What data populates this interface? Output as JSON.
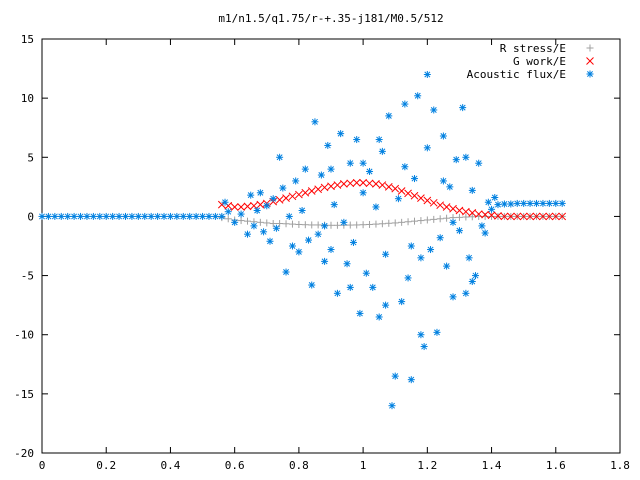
{
  "chart_data": {
    "type": "scatter",
    "title": "m1/n1.5/q1.75/r-+.35-j181/M0.5/512",
    "xlabel": "",
    "ylabel": "",
    "xlim": [
      0,
      1.8
    ],
    "ylim": [
      -20,
      15
    ],
    "x_ticks": [
      "0",
      "0.2",
      "0.4",
      "0.6",
      "0.8",
      "1",
      "1.2",
      "1.4",
      "1.6",
      "1.8"
    ],
    "y_ticks": [
      "-20",
      "-15",
      "-10",
      "-5",
      "0",
      "5",
      "10",
      "15"
    ],
    "grid": false,
    "legend_position": "top-right",
    "series": [
      {
        "name": "R stress/E",
        "marker": "plus",
        "color": "#a0a0a0",
        "points": [
          [
            0.56,
            -0.1
          ],
          [
            0.58,
            -0.2
          ],
          [
            0.6,
            -0.3
          ],
          [
            0.62,
            -0.35
          ],
          [
            0.64,
            -0.4
          ],
          [
            0.66,
            -0.45
          ],
          [
            0.68,
            -0.5
          ],
          [
            0.7,
            -0.55
          ],
          [
            0.72,
            -0.6
          ],
          [
            0.74,
            -0.6
          ],
          [
            0.76,
            -0.62
          ],
          [
            0.78,
            -0.65
          ],
          [
            0.8,
            -0.68
          ],
          [
            0.82,
            -0.7
          ],
          [
            0.84,
            -0.72
          ],
          [
            0.86,
            -0.72
          ],
          [
            0.88,
            -0.74
          ],
          [
            0.9,
            -0.75
          ],
          [
            0.92,
            -0.75
          ],
          [
            0.94,
            -0.74
          ],
          [
            0.96,
            -0.73
          ],
          [
            0.98,
            -0.72
          ],
          [
            1.0,
            -0.7
          ],
          [
            1.02,
            -0.68
          ],
          [
            1.04,
            -0.65
          ],
          [
            1.06,
            -0.62
          ],
          [
            1.08,
            -0.58
          ],
          [
            1.1,
            -0.55
          ],
          [
            1.12,
            -0.5
          ],
          [
            1.14,
            -0.45
          ],
          [
            1.16,
            -0.4
          ],
          [
            1.18,
            -0.35
          ],
          [
            1.2,
            -0.3
          ],
          [
            1.22,
            -0.25
          ],
          [
            1.24,
            -0.2
          ],
          [
            1.26,
            -0.15
          ],
          [
            1.28,
            -0.1
          ],
          [
            1.3,
            -0.08
          ],
          [
            1.32,
            -0.05
          ],
          [
            1.34,
            -0.03
          ],
          [
            1.36,
            0.0
          ],
          [
            1.38,
            0.0
          ],
          [
            1.4,
            0.0
          ],
          [
            1.42,
            0.0
          ],
          [
            1.44,
            0.0
          ],
          [
            1.46,
            0.0
          ],
          [
            1.48,
            0.0
          ],
          [
            1.5,
            0.0
          ],
          [
            1.52,
            0.0
          ],
          [
            1.54,
            0.0
          ],
          [
            1.56,
            0.0
          ],
          [
            1.58,
            0.0
          ],
          [
            1.6,
            0.0
          ],
          [
            1.62,
            0.0
          ]
        ]
      },
      {
        "name": "G work/E",
        "marker": "cross",
        "color": "#ff0000",
        "points": [
          [
            0.56,
            1.0
          ],
          [
            0.58,
            0.9
          ],
          [
            0.6,
            0.8
          ],
          [
            0.62,
            0.8
          ],
          [
            0.64,
            0.85
          ],
          [
            0.66,
            0.9
          ],
          [
            0.68,
            1.0
          ],
          [
            0.7,
            1.1
          ],
          [
            0.72,
            1.25
          ],
          [
            0.74,
            1.4
          ],
          [
            0.76,
            1.55
          ],
          [
            0.78,
            1.7
          ],
          [
            0.8,
            1.85
          ],
          [
            0.82,
            2.0
          ],
          [
            0.84,
            2.15
          ],
          [
            0.86,
            2.3
          ],
          [
            0.88,
            2.45
          ],
          [
            0.9,
            2.55
          ],
          [
            0.92,
            2.65
          ],
          [
            0.94,
            2.75
          ],
          [
            0.96,
            2.8
          ],
          [
            0.98,
            2.85
          ],
          [
            1.0,
            2.85
          ],
          [
            1.02,
            2.8
          ],
          [
            1.04,
            2.75
          ],
          [
            1.06,
            2.65
          ],
          [
            1.08,
            2.5
          ],
          [
            1.1,
            2.35
          ],
          [
            1.12,
            2.15
          ],
          [
            1.14,
            1.95
          ],
          [
            1.16,
            1.75
          ],
          [
            1.18,
            1.55
          ],
          [
            1.2,
            1.35
          ],
          [
            1.22,
            1.15
          ],
          [
            1.24,
            0.95
          ],
          [
            1.26,
            0.8
          ],
          [
            1.28,
            0.65
          ],
          [
            1.3,
            0.5
          ],
          [
            1.32,
            0.4
          ],
          [
            1.34,
            0.3
          ],
          [
            1.36,
            0.2
          ],
          [
            1.38,
            0.15
          ],
          [
            1.4,
            0.1
          ],
          [
            1.42,
            0.05
          ],
          [
            1.44,
            0.0
          ],
          [
            1.46,
            0.0
          ],
          [
            1.48,
            0.0
          ],
          [
            1.5,
            0.0
          ],
          [
            1.52,
            0.0
          ],
          [
            1.54,
            0.0
          ],
          [
            1.56,
            0.0
          ],
          [
            1.58,
            0.0
          ],
          [
            1.6,
            0.0
          ],
          [
            1.62,
            0.0
          ]
        ]
      },
      {
        "name": "Acoustic flux/E",
        "marker": "star",
        "color": "#0080e0",
        "baseline": [
          [
            0.0,
            0.0
          ],
          [
            0.02,
            0.0
          ],
          [
            0.04,
            0.0
          ],
          [
            0.06,
            0.0
          ],
          [
            0.08,
            0.0
          ],
          [
            0.1,
            0.0
          ],
          [
            0.12,
            0.0
          ],
          [
            0.14,
            0.0
          ],
          [
            0.16,
            0.0
          ],
          [
            0.18,
            0.0
          ],
          [
            0.2,
            0.0
          ],
          [
            0.22,
            0.0
          ],
          [
            0.24,
            0.0
          ],
          [
            0.26,
            0.0
          ],
          [
            0.28,
            0.0
          ],
          [
            0.3,
            0.0
          ],
          [
            0.32,
            0.0
          ],
          [
            0.34,
            0.0
          ],
          [
            0.36,
            0.0
          ],
          [
            0.38,
            0.0
          ],
          [
            0.4,
            0.0
          ],
          [
            0.42,
            0.0
          ],
          [
            0.44,
            0.0
          ],
          [
            0.46,
            0.0
          ],
          [
            0.48,
            0.0
          ],
          [
            0.5,
            0.0
          ],
          [
            0.52,
            0.0
          ],
          [
            0.54,
            0.0
          ],
          [
            0.56,
            0.0
          ],
          [
            1.42,
            1.0
          ],
          [
            1.44,
            1.05
          ],
          [
            1.46,
            1.05
          ],
          [
            1.48,
            1.1
          ],
          [
            1.5,
            1.1
          ],
          [
            1.52,
            1.1
          ],
          [
            1.54,
            1.1
          ],
          [
            1.56,
            1.1
          ],
          [
            1.58,
            1.1
          ],
          [
            1.6,
            1.1
          ],
          [
            1.62,
            1.1
          ]
        ],
        "points": [
          [
            0.57,
            1.2
          ],
          [
            0.58,
            0.4
          ],
          [
            0.6,
            -0.5
          ],
          [
            0.62,
            0.2
          ],
          [
            0.64,
            -1.5
          ],
          [
            0.65,
            1.8
          ],
          [
            0.66,
            -0.8
          ],
          [
            0.67,
            0.5
          ],
          [
            0.68,
            2.0
          ],
          [
            0.69,
            -1.3
          ],
          [
            0.7,
            0.9
          ],
          [
            0.71,
            -2.1
          ],
          [
            0.72,
            1.5
          ],
          [
            0.73,
            -1.0
          ],
          [
            0.74,
            5.0
          ],
          [
            0.75,
            2.4
          ],
          [
            0.76,
            -4.7
          ],
          [
            0.77,
            0.0
          ],
          [
            0.78,
            -2.5
          ],
          [
            0.79,
            3.0
          ],
          [
            0.8,
            -3.0
          ],
          [
            0.81,
            0.5
          ],
          [
            0.82,
            4.0
          ],
          [
            0.83,
            -2.0
          ],
          [
            0.84,
            -5.8
          ],
          [
            0.85,
            8.0
          ],
          [
            0.86,
            -1.5
          ],
          [
            0.87,
            3.5
          ],
          [
            0.88,
            -3.8
          ],
          [
            0.89,
            6.0
          ],
          [
            0.9,
            -2.8
          ],
          [
            0.91,
            1.0
          ],
          [
            0.92,
            -6.5
          ],
          [
            0.93,
            7.0
          ],
          [
            0.94,
            -0.5
          ],
          [
            0.95,
            -4.0
          ],
          [
            0.96,
            4.5
          ],
          [
            0.97,
            -2.2
          ],
          [
            0.98,
            6.5
          ],
          [
            0.99,
            -8.2
          ],
          [
            1.0,
            2.0
          ],
          [
            1.01,
            -4.8
          ],
          [
            1.02,
            3.8
          ],
          [
            1.03,
            -6.0
          ],
          [
            1.04,
            0.8
          ],
          [
            1.05,
            -8.5
          ],
          [
            1.06,
            5.5
          ],
          [
            1.07,
            -3.2
          ],
          [
            1.08,
            8.5
          ],
          [
            1.09,
            -16.0
          ],
          [
            1.1,
            -13.5
          ],
          [
            1.11,
            1.5
          ],
          [
            1.12,
            -7.2
          ],
          [
            1.13,
            4.2
          ],
          [
            1.14,
            -5.2
          ],
          [
            1.15,
            -13.8
          ],
          [
            1.16,
            3.2
          ],
          [
            1.17,
            10.2
          ],
          [
            1.18,
            -10.0
          ],
          [
            1.19,
            -11.0
          ],
          [
            1.2,
            5.8
          ],
          [
            1.21,
            -2.8
          ],
          [
            1.22,
            9.0
          ],
          [
            1.23,
            -9.8
          ],
          [
            1.24,
            -1.8
          ],
          [
            1.25,
            3.0
          ],
          [
            1.26,
            -4.2
          ],
          [
            1.27,
            2.5
          ],
          [
            1.28,
            -6.8
          ],
          [
            1.29,
            4.8
          ],
          [
            1.3,
            -1.2
          ],
          [
            1.31,
            9.2
          ],
          [
            1.32,
            -6.5
          ],
          [
            1.33,
            -3.5
          ],
          [
            1.34,
            2.2
          ],
          [
            1.35,
            -5.0
          ],
          [
            1.36,
            4.5
          ],
          [
            1.37,
            -0.8
          ],
          [
            1.38,
            -1.4
          ],
          [
            1.39,
            1.2
          ],
          [
            1.4,
            0.6
          ],
          [
            1.41,
            1.6
          ],
          [
            1.2,
            12.0
          ],
          [
            1.13,
            9.5
          ],
          [
            1.07,
            -7.5
          ],
          [
            0.96,
            -6.0
          ],
          [
            0.88,
            -0.8
          ],
          [
            0.9,
            4.0
          ],
          [
            1.0,
            4.5
          ],
          [
            1.05,
            6.5
          ],
          [
            1.15,
            -2.5
          ],
          [
            1.18,
            -3.5
          ],
          [
            1.25,
            6.8
          ],
          [
            1.28,
            -0.5
          ],
          [
            1.32,
            5.0
          ],
          [
            1.34,
            -5.5
          ]
        ]
      }
    ]
  }
}
